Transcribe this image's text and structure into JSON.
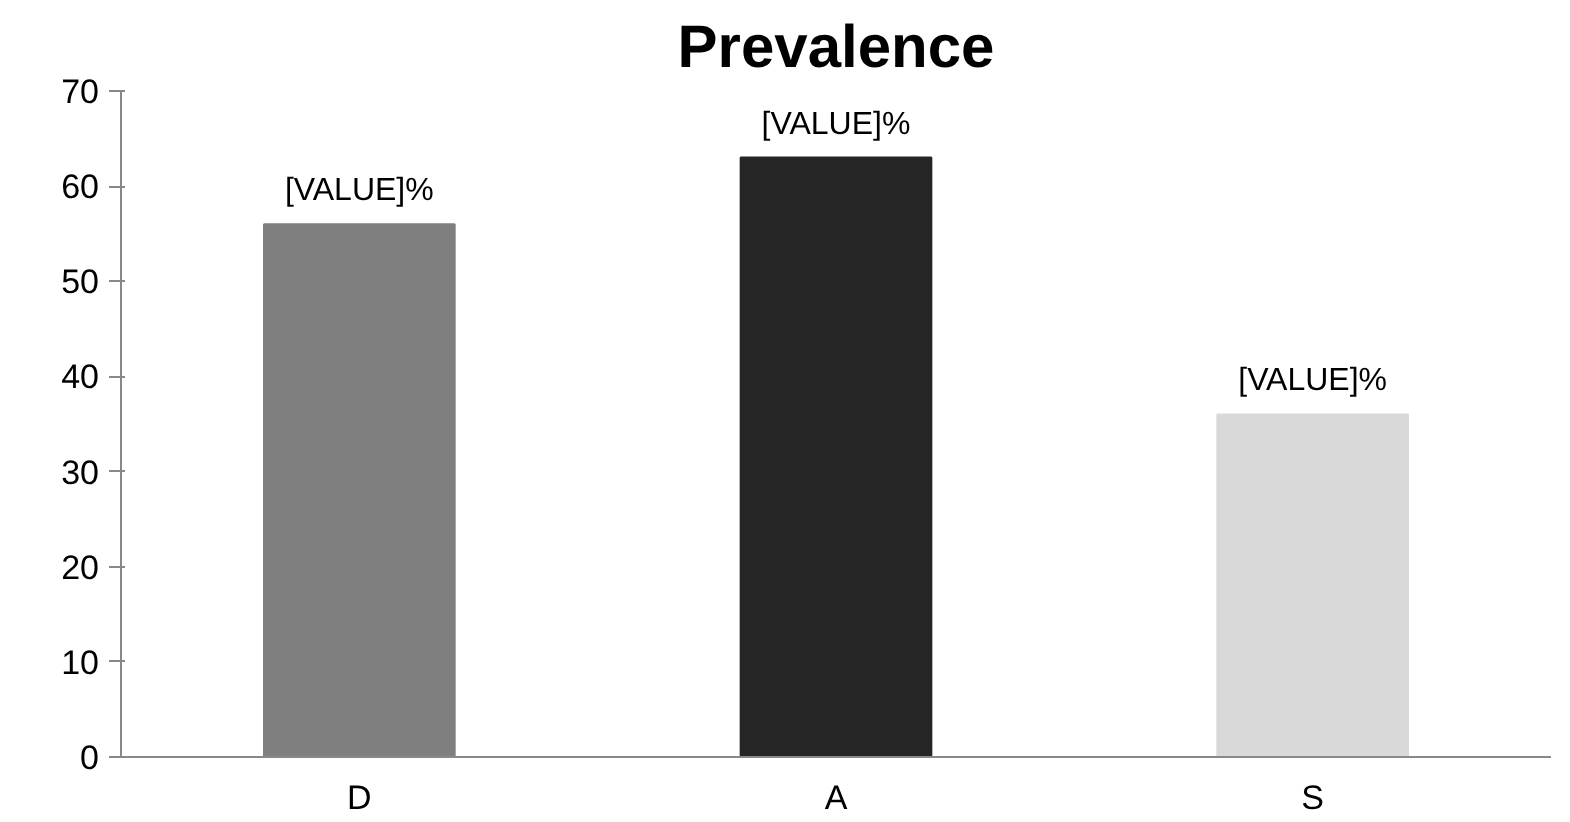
{
  "chart_data": {
    "type": "bar",
    "title": "Prevalence",
    "categories": [
      "D",
      "A",
      "S"
    ],
    "values": [
      56,
      63,
      36
    ],
    "colors": [
      "#7f7f7f",
      "#262626",
      "#d9d9d9"
    ],
    "value_labels": [
      "[VALUE]%",
      "[VALUE]%",
      "[VALUE]%"
    ],
    "ylim": [
      0,
      70
    ],
    "yticks": [
      0,
      10,
      20,
      30,
      40,
      50,
      60,
      70
    ],
    "grid": false
  }
}
